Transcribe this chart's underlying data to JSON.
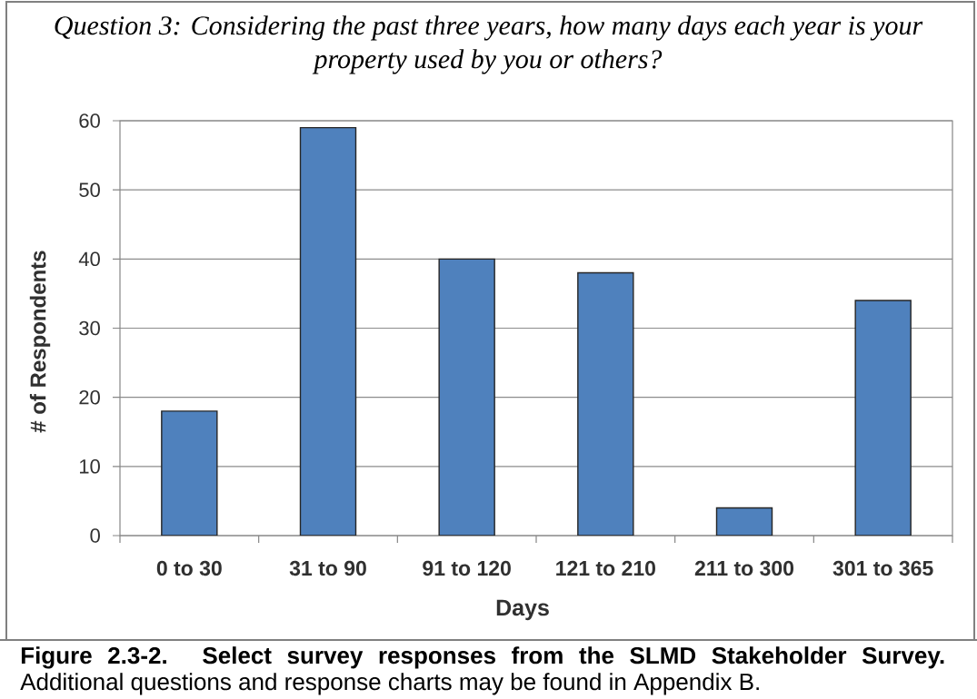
{
  "chart_data": {
    "type": "bar",
    "title": "Question 3: Considering the past three years, how many days each year is your property used by you or others?",
    "xlabel": "Days",
    "ylabel": "# of Respondents",
    "categories": [
      "0 to 30",
      "31 to 90",
      "91 to 120",
      "121 to 210",
      "211 to 300",
      "301 to 365"
    ],
    "values": [
      18,
      59,
      40,
      38,
      4,
      34
    ],
    "color": "#4f81bd",
    "ylim": [
      0,
      60
    ],
    "yticks": [
      0,
      10,
      20,
      30,
      40,
      50,
      60
    ],
    "grid": "y",
    "annotations": [
      "**Figure 2.3-2. Select survey responses from the SLMD Stakeholder Survey.** Additional questions and response charts may be found in Appendix B."
    ]
  }
}
